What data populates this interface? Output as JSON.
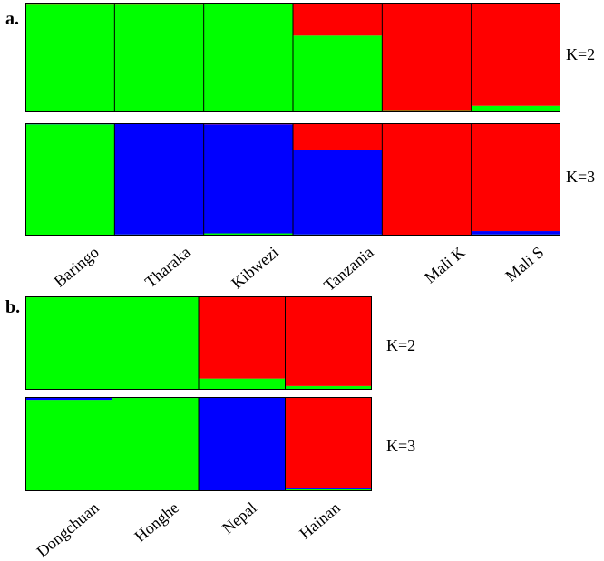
{
  "colors": {
    "cluster1": "#00ff00",
    "cluster2": "#ff0000",
    "cluster3": "#0000ff",
    "border": "#000000"
  },
  "panel_a": {
    "label": "a.",
    "k_labels": [
      "K=2",
      "K=3"
    ],
    "populations": [
      "Baringo",
      "Tharaka",
      "Kibwezi",
      "Tanzania",
      "Mali K",
      "Mali S"
    ]
  },
  "panel_b": {
    "label": "b.",
    "k_labels": [
      "K=2",
      "K=3"
    ],
    "populations": [
      "Dongchuan",
      "Honghe",
      "Nepal",
      "Hainan"
    ]
  },
  "chart_data": [
    {
      "type": "bar",
      "stacked": true,
      "panel": "a",
      "row": "K=2",
      "categories": [
        "Baringo",
        "Tharaka",
        "Kibwezi",
        "Tanzania",
        "Mali K",
        "Mali S"
      ],
      "series": [
        {
          "color": "#00ff00",
          "values": [
            0.99,
            0.99,
            1.0,
            0.7,
            0.02,
            0.06
          ]
        },
        {
          "color": "#ff0000",
          "values": [
            0.01,
            0.01,
            0.0,
            0.3,
            0.98,
            0.94
          ]
        }
      ],
      "ylim": [
        0,
        1
      ]
    },
    {
      "type": "bar",
      "stacked": true,
      "panel": "a",
      "row": "K=3",
      "categories": [
        "Baringo",
        "Tharaka",
        "Kibwezi",
        "Tanzania",
        "Mali K",
        "Mali S"
      ],
      "series": [
        {
          "color": "#00ff00",
          "values": [
            0.99,
            0.01,
            0.02,
            0.01,
            0.0,
            0.01
          ]
        },
        {
          "color": "#0000ff",
          "values": [
            0.01,
            0.99,
            0.97,
            0.75,
            0.0,
            0.03
          ]
        },
        {
          "color": "#ff0000",
          "values": [
            0.0,
            0.0,
            0.01,
            0.24,
            1.0,
            0.96
          ]
        }
      ],
      "ylim": [
        0,
        1
      ]
    },
    {
      "type": "bar",
      "stacked": true,
      "panel": "b",
      "row": "K=2",
      "categories": [
        "Dongchuan",
        "Honghe",
        "Nepal",
        "Hainan"
      ],
      "series": [
        {
          "color": "#00ff00",
          "values": [
            0.99,
            1.0,
            0.12,
            0.04
          ]
        },
        {
          "color": "#ff0000",
          "values": [
            0.01,
            0.0,
            0.88,
            0.96
          ]
        }
      ],
      "ylim": [
        0,
        1
      ]
    },
    {
      "type": "bar",
      "stacked": true,
      "panel": "b",
      "row": "K=3",
      "categories": [
        "Dongchuan",
        "Honghe",
        "Nepal",
        "Hainan"
      ],
      "series": [
        {
          "color": "#00ff00",
          "values": [
            0.97,
            0.99,
            0.0,
            0.02
          ]
        },
        {
          "color": "#0000ff",
          "values": [
            0.03,
            0.01,
            1.0,
            0.01
          ]
        },
        {
          "color": "#ff0000",
          "values": [
            0.0,
            0.0,
            0.0,
            0.97
          ]
        }
      ],
      "ylim": [
        0,
        1
      ]
    }
  ]
}
